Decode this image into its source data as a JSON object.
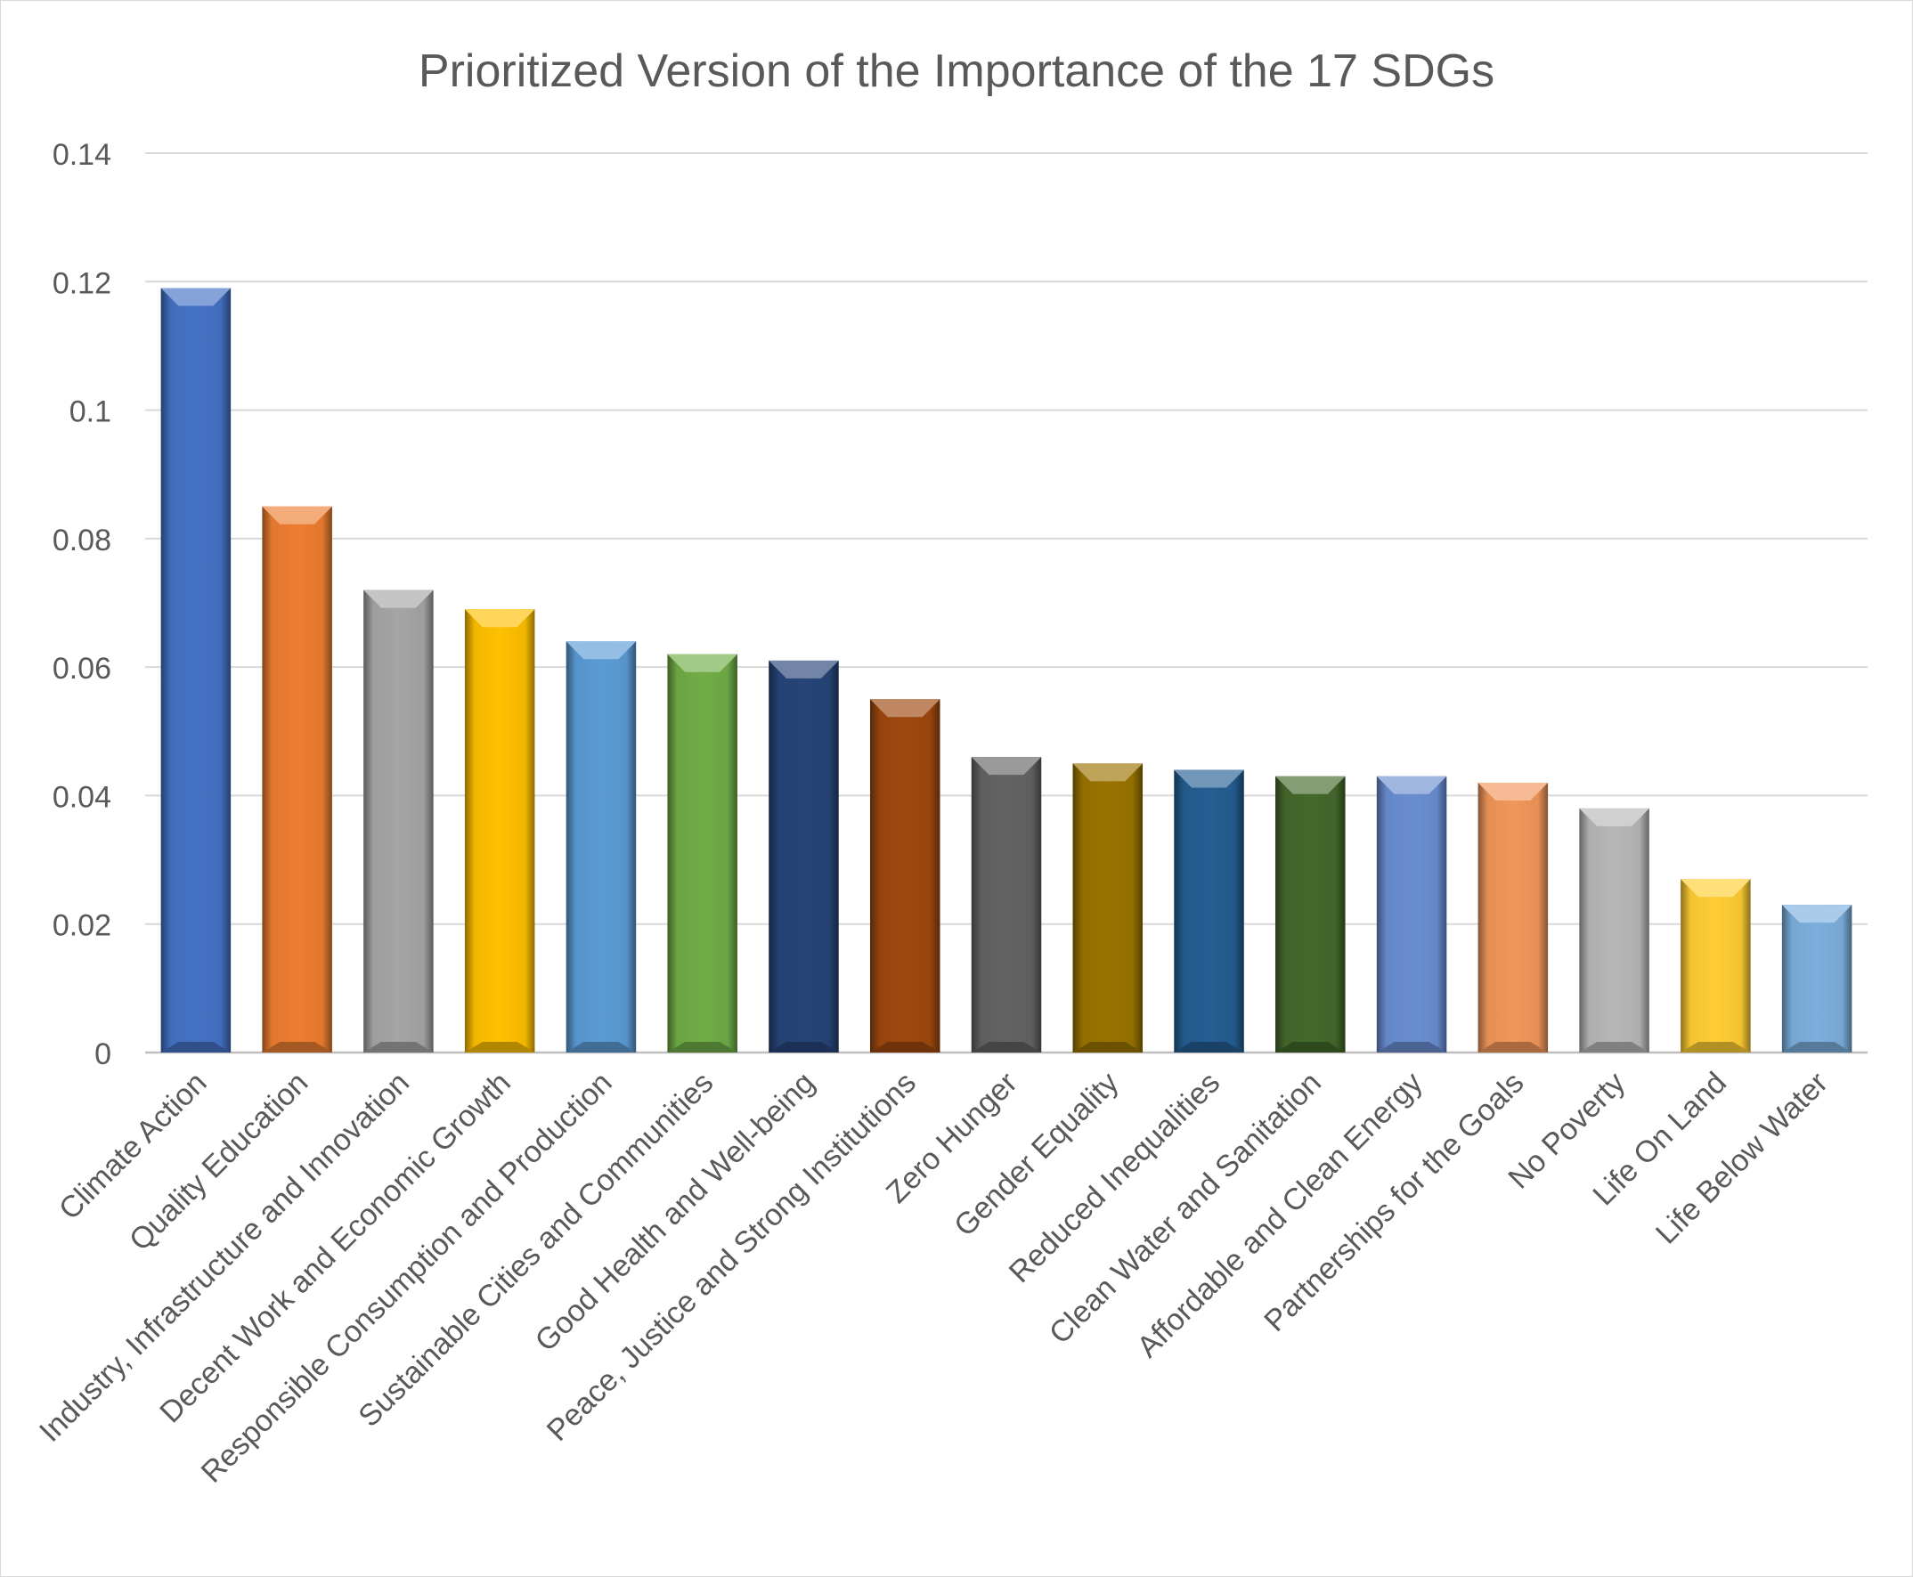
{
  "chart_data": {
    "type": "bar",
    "title": "Prioritized Version of the Importance of the 17 SDGs",
    "xlabel": "",
    "ylabel": "",
    "ylim": [
      0,
      0.14
    ],
    "yticks": [
      "0",
      "0.02",
      "0.04",
      "0.06",
      "0.08",
      "0.1",
      "0.12",
      "0.14"
    ],
    "grid": true,
    "legend": "none",
    "categories": [
      "Climate Action",
      "Quality Education",
      "Industry, Infrastructure and Innovation",
      "Decent Work and Economic Growth",
      "Responsible Consumption and Production",
      "Sustainable Cities and Communities",
      "Good Health and Well-being",
      "Peace, Justice and Strong Institutions",
      "Zero Hunger",
      "Gender Equality",
      "Reduced Inequalities",
      "Clean Water and Sanitation",
      "Affordable and Clean Energy",
      "Partnerships for the Goals",
      "No Poverty",
      "Life On Land",
      "Life Below Water"
    ],
    "values": [
      0.119,
      0.085,
      0.072,
      0.069,
      0.064,
      0.062,
      0.061,
      0.055,
      0.046,
      0.045,
      0.044,
      0.043,
      0.043,
      0.042,
      0.038,
      0.027,
      0.023
    ],
    "colors": [
      "#4472c4",
      "#ed7d31",
      "#a5a5a5",
      "#ffc000",
      "#5b9bd5",
      "#70ad47",
      "#264478",
      "#9e480e",
      "#636363",
      "#997300",
      "#255e91",
      "#43682b",
      "#698ed0",
      "#f1975a",
      "#b7b7b7",
      "#ffcd33",
      "#7cafdd"
    ]
  }
}
